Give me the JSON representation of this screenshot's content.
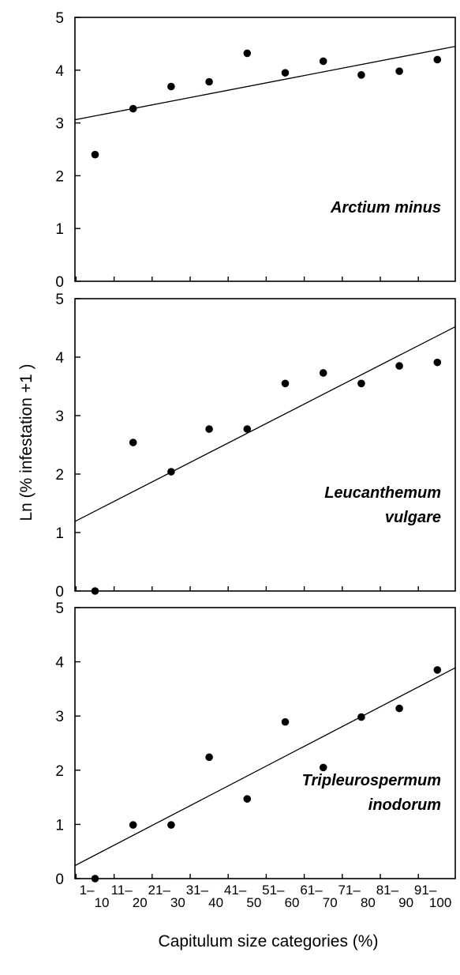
{
  "figure": {
    "ylabel": "Ln (% infestation +1 )",
    "xlabel": "Capitulum size categories (%)",
    "categories": [
      {
        "top": "1–",
        "bottom": "10"
      },
      {
        "top": "11–",
        "bottom": "20"
      },
      {
        "top": "21–",
        "bottom": "30"
      },
      {
        "top": "31–",
        "bottom": "40"
      },
      {
        "top": "41–",
        "bottom": "50"
      },
      {
        "top": "51–",
        "bottom": "60"
      },
      {
        "top": "61–",
        "bottom": "70"
      },
      {
        "top": "71–",
        "bottom": "80"
      },
      {
        "top": "81–",
        "bottom": "90"
      },
      {
        "top": "91–",
        "bottom": "100"
      }
    ]
  },
  "chart_data": [
    {
      "type": "scatter",
      "label_lines": [
        "Arctium minus"
      ],
      "label_align": "right",
      "x": [
        1,
        2,
        3,
        4,
        5,
        6,
        7,
        8,
        9,
        10
      ],
      "y": [
        2.4,
        3.27,
        3.69,
        3.78,
        4.32,
        3.95,
        4.17,
        3.91,
        3.98,
        4.2
      ],
      "trendline": {
        "y_start": 3.06,
        "y_end": 4.45
      },
      "ylim": [
        0,
        5
      ],
      "yticks": [
        "0",
        "1",
        "2",
        "3",
        "4",
        "5"
      ],
      "grid": false
    },
    {
      "type": "scatter",
      "label_lines": [
        "Leucanthemum",
        "vulgare"
      ],
      "label_align": "right",
      "x": [
        1,
        2,
        3,
        4,
        5,
        6,
        7,
        8,
        9,
        10
      ],
      "y": [
        0,
        2.54,
        2.04,
        2.77,
        2.77,
        3.55,
        3.73,
        3.55,
        3.85,
        3.91
      ],
      "trendline": {
        "y_start": 1.19,
        "y_end": 4.52
      },
      "ylim": [
        0,
        5
      ],
      "yticks": [
        "0",
        "1",
        "2",
        "3",
        "4",
        "5"
      ],
      "grid": false
    },
    {
      "type": "scatter",
      "label_lines": [
        "Tripleurospermum",
        "inodorum"
      ],
      "label_align": "right",
      "x": [
        1,
        2,
        3,
        4,
        5,
        6,
        7,
        8,
        9,
        10
      ],
      "y": [
        0,
        0.99,
        0.99,
        2.24,
        1.47,
        2.89,
        2.05,
        2.98,
        3.14,
        3.85
      ],
      "trendline": {
        "y_start": 0.24,
        "y_end": 3.89
      },
      "ylim": [
        0,
        5
      ],
      "yticks": [
        "0",
        "1",
        "2",
        "3",
        "4",
        "5"
      ],
      "grid": false
    }
  ]
}
